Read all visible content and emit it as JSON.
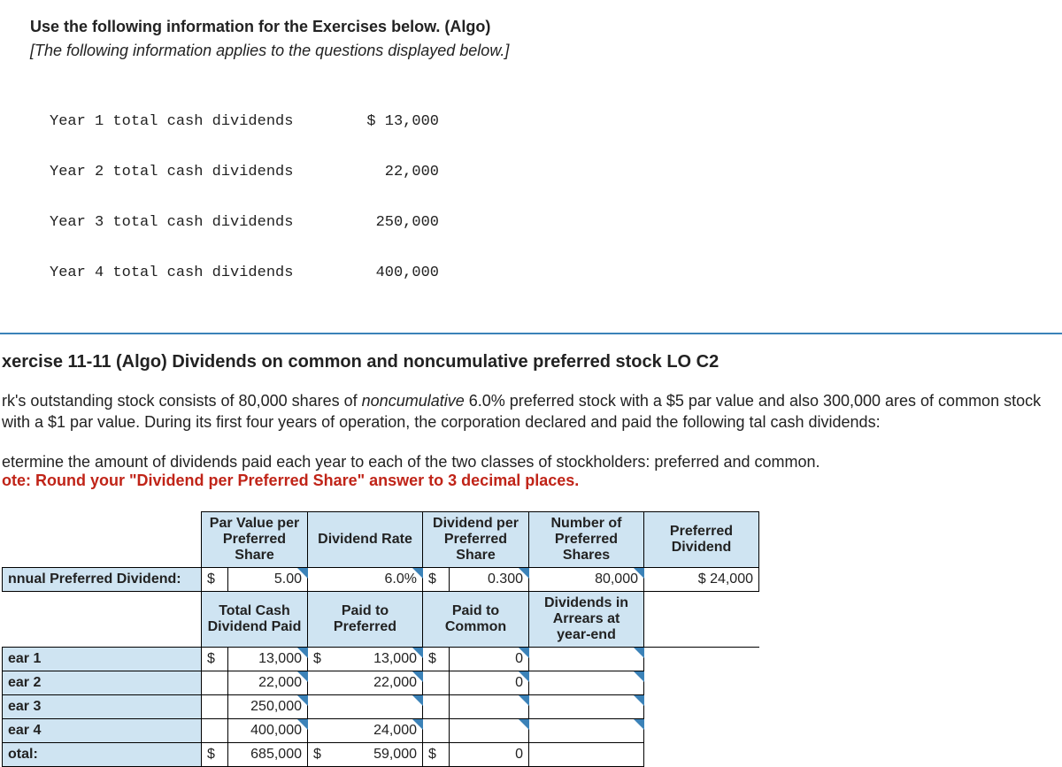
{
  "top": {
    "title": "Use the following information for the Exercises below. (Algo)",
    "subtitle": "[The following information applies to the questions displayed below.]",
    "dividend_years": [
      {
        "label": "Year 1 total cash dividends",
        "value": "$ 13,000"
      },
      {
        "label": "Year 2 total cash dividends",
        "value": "22,000"
      },
      {
        "label": "Year 3 total cash dividends",
        "value": "250,000"
      },
      {
        "label": "Year 4 total cash dividends",
        "value": "400,000"
      }
    ]
  },
  "exercise": {
    "title": "xercise 11-11 (Algo) Dividends on common and noncumulative preferred stock LO C2",
    "body_pre": "rk's outstanding stock consists of 80,000 shares of ",
    "body_italic": "noncumulative",
    "body_post": " 6.0% preferred stock with a $5 par value and also 300,000 ares of common stock with a $1 par value. During its first four years of operation, the corporation declared and paid the following tal cash dividends:",
    "instr_line1": "etermine the amount of dividends paid each year to each of the two classes of stockholders: preferred and common.",
    "instr_line2": "ote: Round your \"Dividend per Preferred Share\" answer to 3 decimal places."
  },
  "table": {
    "headers1": {
      "par_value": "Par Value per Preferred Share",
      "div_rate": "Dividend Rate",
      "div_per_share": "Dividend per Preferred Share",
      "num_shares": "Number of Preferred Shares",
      "pref_dividend": "Preferred Dividend"
    },
    "annual_row": {
      "label": "nnual Preferred Dividend:",
      "par_dollar": "$",
      "par_value": "5.00",
      "div_rate": "6.0%",
      "dps_dollar": "$",
      "dps_value": "0.300",
      "num_shares": "80,000",
      "pref_div": "$ 24,000"
    },
    "headers2": {
      "total_cash": "Total Cash Dividend Paid",
      "paid_pref": "Paid to Preferred",
      "paid_common": "Paid to Common",
      "arrears": "Dividends in Arrears at year-end"
    },
    "rows": [
      {
        "label": "ear 1",
        "tc_d": "$",
        "tc": "13,000",
        "pp_d": "$",
        "pp": "13,000",
        "pc_d": "$",
        "pc": "0",
        "arr": ""
      },
      {
        "label": "ear 2",
        "tc_d": "",
        "tc": "22,000",
        "pp_d": "",
        "pp": "22,000",
        "pc_d": "",
        "pc": "0",
        "arr": ""
      },
      {
        "label": "ear 3",
        "tc_d": "",
        "tc": "250,000",
        "pp_d": "",
        "pp": "",
        "pc_d": "",
        "pc": "",
        "arr": ""
      },
      {
        "label": "ear 4",
        "tc_d": "",
        "tc": "400,000",
        "pp_d": "",
        "pp": "24,000",
        "pc_d": "",
        "pc": "",
        "arr": ""
      }
    ],
    "total": {
      "label": "otal:",
      "tc_d": "$",
      "tc": "685,000",
      "pp_d": "$",
      "pp": "59,000",
      "pc_d": "$",
      "pc": "0",
      "arr": ""
    }
  },
  "style": {
    "header_bg": "#cfe4f2",
    "accent_triangle": "#3b82b8",
    "red_text": "#c02418",
    "border": "#000000",
    "top_border": "#3b82b8"
  }
}
